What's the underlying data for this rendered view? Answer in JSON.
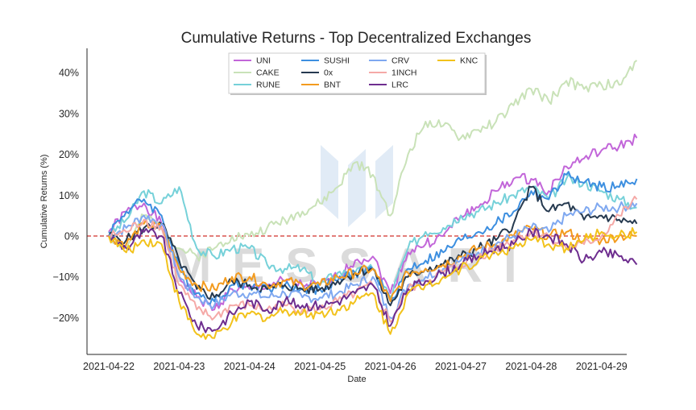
{
  "chart_data": {
    "type": "line",
    "title": "Cumulative Returns - Top Decentralized Exchanges",
    "xlabel": "Date",
    "ylabel": "Cumulative Returns (%)",
    "x_ticks": [
      "2021-04-22",
      "2021-04-23",
      "2021-04-24",
      "2021-04-25",
      "2021-04-26",
      "2021-04-27",
      "2021-04-28",
      "2021-04-29"
    ],
    "xlim": [
      0,
      7.5
    ],
    "ylim": [
      -29,
      46
    ],
    "y_ticks": [
      -20,
      -10,
      0,
      10,
      20,
      30,
      40
    ],
    "y_tick_labels": [
      "−20%",
      "−10%",
      "0%",
      "10%",
      "20%",
      "30%",
      "40%"
    ],
    "reference_line": {
      "y": 0,
      "color": "#d9534f",
      "style": "dashed"
    },
    "grid": false,
    "legend_position": "top-center",
    "legend_columns": 4,
    "watermark": "MESSARI",
    "x": [
      0.0,
      0.25,
      0.5,
      0.75,
      1.0,
      1.25,
      1.5,
      1.75,
      2.0,
      2.25,
      2.5,
      2.75,
      3.0,
      3.25,
      3.5,
      3.75,
      4.0,
      4.25,
      4.5,
      4.75,
      5.0,
      5.25,
      5.5,
      5.75,
      6.0,
      6.25,
      6.5,
      6.75,
      7.0,
      7.25,
      7.5
    ],
    "series": [
      {
        "name": "UNI",
        "color": "#c266d9",
        "values": [
          1,
          6,
          8,
          3,
          -10,
          -15,
          -18,
          -13,
          -13,
          -12,
          -11,
          -12,
          -12,
          -10,
          -6,
          -5,
          -14,
          -4,
          -2,
          0,
          5,
          7,
          11,
          14,
          14,
          11,
          17,
          19,
          21,
          22,
          24
        ]
      },
      {
        "name": "CAKE",
        "color": "#c9e2b8",
        "values": [
          0,
          -3,
          5,
          2,
          -3,
          -5,
          -3,
          0,
          0,
          2,
          4,
          6,
          8,
          12,
          18,
          15,
          5,
          20,
          28,
          27,
          24,
          26,
          28,
          32,
          36,
          33,
          38,
          36,
          37,
          37,
          43
        ]
      },
      {
        "name": "RUNE",
        "color": "#76d1d9",
        "values": [
          0,
          4,
          11,
          8,
          12,
          -3,
          -5,
          -3,
          -3,
          -7,
          -8,
          -8,
          -12,
          -9,
          -9,
          -8,
          -15,
          -3,
          1,
          2,
          5,
          6,
          8,
          10,
          12,
          9,
          14,
          13,
          11,
          9,
          7
        ]
      },
      {
        "name": "SUSHI",
        "color": "#3d8fe0",
        "values": [
          1,
          6,
          9,
          5,
          -8,
          -14,
          -16,
          -12,
          -12,
          -13,
          -12,
          -13,
          -13,
          -11,
          -9,
          -8,
          -16,
          -8,
          -6,
          -4,
          -1,
          1,
          3,
          6,
          11,
          9,
          15,
          13,
          12,
          12,
          14
        ]
      },
      {
        "name": "0x",
        "color": "#263a50",
        "values": [
          0,
          -1,
          2,
          3,
          -6,
          -13,
          -15,
          -11,
          -12,
          -13,
          -12,
          -13,
          -13,
          -11,
          -9,
          -8,
          -17,
          -10,
          -8,
          -7,
          -5,
          -3,
          -1,
          3,
          12,
          6,
          8,
          4,
          5,
          4,
          3
        ]
      },
      {
        "name": "BNT",
        "color": "#f39b1e",
        "values": [
          0,
          -2,
          3,
          2,
          -8,
          -12,
          -13,
          -10,
          -10,
          -12,
          -11,
          -12,
          -12,
          -10,
          -9,
          -8,
          -16,
          -9,
          -8,
          -7,
          -5,
          -3,
          -2,
          0,
          2,
          0,
          1,
          -1,
          -1,
          0,
          0
        ]
      },
      {
        "name": "CRV",
        "color": "#7fa8f0",
        "values": [
          0,
          2,
          5,
          3,
          -10,
          -15,
          -17,
          -14,
          -14,
          -15,
          -14,
          -15,
          -15,
          -14,
          -12,
          -10,
          -20,
          -12,
          -10,
          -8,
          -6,
          -4,
          -2,
          0,
          2,
          1,
          5,
          6,
          7,
          7,
          8
        ]
      },
      {
        "name": "1INCH",
        "color": "#f5a9a7",
        "values": [
          0,
          1,
          4,
          2,
          -12,
          -18,
          -20,
          -17,
          -17,
          -18,
          -17,
          -18,
          -18,
          -16,
          -14,
          -12,
          -21,
          -13,
          -11,
          -9,
          -7,
          -5,
          -3,
          -1,
          1,
          0,
          -3,
          -2,
          0,
          5,
          9
        ]
      },
      {
        "name": "LRC",
        "color": "#6e2e8f",
        "values": [
          0,
          -3,
          1,
          0,
          -14,
          -22,
          -23,
          -19,
          -16,
          -18,
          -16,
          -17,
          -17,
          -16,
          -14,
          -12,
          -22,
          -13,
          -11,
          -9,
          -7,
          -5,
          -3,
          -2,
          1,
          0,
          -2,
          -6,
          -4,
          -5,
          -7
        ]
      },
      {
        "name": "KNC",
        "color": "#f2c21b",
        "values": [
          0,
          -4,
          -1,
          -2,
          -16,
          -24,
          -25,
          -21,
          -19,
          -20,
          -18,
          -19,
          -19,
          -18,
          -16,
          -14,
          -24,
          -14,
          -12,
          -10,
          -8,
          -6,
          -4,
          -3,
          -1,
          -2,
          -3,
          -1,
          1,
          0,
          1
        ]
      }
    ]
  }
}
